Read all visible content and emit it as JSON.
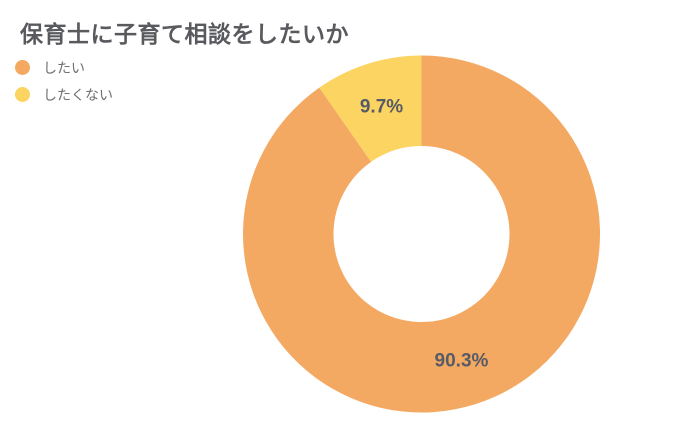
{
  "chart_data": {
    "type": "pie",
    "subtype": "donut",
    "title": "保育士に子育て相談をしたいか",
    "legend_position": "top-left",
    "start_angle_deg": 0,
    "direction": "clockwise",
    "background_color": "#FFFFFF",
    "title_color": "#595A5E",
    "legend_text_color": "#6F6F6F",
    "slice_label_color": "#565B66",
    "slices": [
      {
        "name": "したい",
        "value": 90.3,
        "label": "90.3%",
        "color": "#F4A963"
      },
      {
        "name": "したくない",
        "value": 9.7,
        "label": "9.7%",
        "color": "#FCD462"
      }
    ]
  }
}
